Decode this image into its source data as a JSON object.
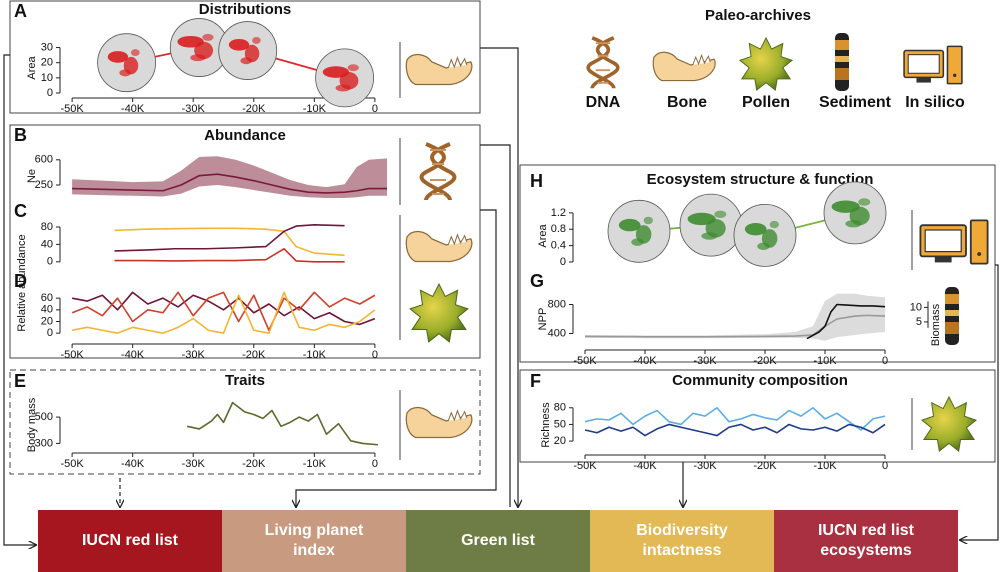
{
  "paleo_archives": {
    "title": "Paleo-archives",
    "items": [
      "DNA",
      "Bone",
      "Pollen",
      "Sediment",
      "In silico"
    ]
  },
  "outcomes": [
    "IUCN red list",
    "Living planet index",
    "Green list",
    "Biodiversity intactness",
    "IUCN red list ecosystems"
  ],
  "chart_data": [
    {
      "type": "line",
      "panel": "A",
      "title": "Distributions",
      "ylabel": "Area",
      "marker": "map",
      "color": "#e3262b",
      "map_color": "#d9d9d9",
      "range_color": "#d81e1e",
      "xlim": [
        -52,
        2
      ],
      "ylim": [
        0,
        33
      ],
      "yticks": [
        0,
        10,
        20,
        30
      ],
      "xticks": [
        {
          "value": -50,
          "label": "-50K"
        },
        {
          "value": -40,
          "label": "-40K"
        },
        {
          "value": -30,
          "label": "-30K"
        },
        {
          "value": -20,
          "label": "-20K"
        },
        {
          "value": -10,
          "label": "-10K"
        },
        0
      ],
      "x": [
        -41,
        -29,
        -21,
        -5
      ],
      "values": [
        20,
        30,
        28,
        10
      ]
    },
    {
      "type": "line",
      "panel": "B",
      "title": "Abundance",
      "ylabel": "Ne",
      "color": "#7a1a3a",
      "band_color": "#b27a88",
      "xlim": [
        -52,
        2
      ],
      "ylim": [
        0,
        750
      ],
      "yticks": [
        250,
        600
      ],
      "x": [
        -50,
        -45,
        -40,
        -35,
        -32,
        -29,
        -26,
        -23,
        -20,
        -17,
        -14,
        -11,
        -8,
        -5,
        -3,
        -1,
        2
      ],
      "values": [
        200,
        190,
        180,
        170,
        250,
        380,
        400,
        360,
        310,
        250,
        190,
        150,
        140,
        150,
        170,
        200,
        200
      ],
      "upper": [
        330,
        310,
        290,
        300,
        450,
        640,
        650,
        600,
        520,
        420,
        320,
        250,
        220,
        260,
        500,
        600,
        620
      ],
      "lower": [
        120,
        110,
        100,
        90,
        130,
        230,
        250,
        220,
        180,
        140,
        100,
        80,
        70,
        70,
        80,
        100,
        100
      ]
    },
    {
      "type": "line",
      "panel": "C",
      "ylabel": "Relative abundance",
      "xlim": [
        -52,
        2
      ],
      "ylim": [
        -5,
        96
      ],
      "yticks": [
        0,
        40,
        80
      ],
      "x": [
        -43,
        -38,
        -33,
        -28,
        -23,
        -18,
        -15,
        -13,
        -10,
        -5
      ],
      "series": [
        {
          "color": "#f2b632",
          "values": [
            72,
            75,
            76,
            77,
            77,
            75,
            70,
            35,
            20,
            15
          ]
        },
        {
          "color": "#6e1538",
          "values": [
            25,
            27,
            30,
            30,
            32,
            35,
            70,
            82,
            85,
            83
          ]
        },
        {
          "color": "#c8322a",
          "values": [
            3,
            3,
            2,
            3,
            3,
            5,
            30,
            2,
            0,
            0
          ]
        }
      ]
    },
    {
      "type": "line",
      "panel": "D",
      "xlim": [
        -52,
        2
      ],
      "ylim": [
        -10,
        74
      ],
      "yticks": [
        0,
        20,
        40,
        60
      ],
      "xticks": [
        {
          "value": -50,
          "label": "-50K"
        },
        {
          "value": -40,
          "label": "-40K"
        },
        {
          "value": -30,
          "label": "-30K"
        },
        {
          "value": -20,
          "label": "-20K"
        },
        {
          "value": -10,
          "label": "-10K"
        },
        0
      ],
      "x": [
        -50,
        -47.5,
        -45,
        -42.5,
        -40,
        -37.5,
        -35,
        -32.5,
        -30,
        -27.5,
        -25,
        -22.5,
        -20,
        -17.5,
        -15,
        -12.5,
        -10,
        -7.5,
        -5,
        -2.5,
        0
      ],
      "series": [
        {
          "color": "#6e1538",
          "values": [
            60,
            55,
            65,
            40,
            70,
            50,
            60,
            45,
            65,
            55,
            40,
            60,
            35,
            50,
            30,
            45,
            25,
            35,
            20,
            15,
            25
          ]
        },
        {
          "color": "#d0402a",
          "values": [
            35,
            45,
            30,
            60,
            20,
            40,
            35,
            70,
            30,
            60,
            70,
            20,
            65,
            5,
            60,
            40,
            70,
            45,
            60,
            50,
            65
          ]
        },
        {
          "color": "#f2b632",
          "values": [
            5,
            10,
            5,
            0,
            10,
            5,
            0,
            10,
            25,
            5,
            0,
            65,
            5,
            0,
            70,
            10,
            5,
            15,
            10,
            20,
            40
          ]
        }
      ]
    },
    {
      "type": "line",
      "panel": "E",
      "title": "Traits",
      "ylabel": "Body mass",
      "color": "#5a6b2e",
      "xlim": [
        -52,
        2
      ],
      "ylim": [
        250,
        630
      ],
      "yticks": [
        300,
        500
      ],
      "xticks": [
        {
          "value": -50,
          "label": "-50K"
        },
        {
          "value": -40,
          "label": "-40K"
        },
        {
          "value": -30,
          "label": "-30K"
        },
        {
          "value": -20,
          "label": "-20K"
        },
        {
          "value": -10,
          "label": "-10K"
        },
        0
      ],
      "x": [
        -31,
        -29,
        -27,
        -26,
        -25,
        -23.5,
        -21.5,
        -20,
        -18.5,
        -17,
        -15.5,
        -14,
        -12.5,
        -11,
        -9.5,
        -8,
        -6,
        -4,
        -2,
        0.5
      ],
      "values": [
        430,
        410,
        470,
        520,
        460,
        610,
        540,
        520,
        490,
        550,
        430,
        460,
        500,
        470,
        520,
        370,
        450,
        320,
        300,
        290
      ]
    },
    {
      "type": "line",
      "panel": "H",
      "title": "Ecosystem structure & function",
      "ylabel": "Area",
      "marker": "map",
      "color": "#7cb342",
      "map_color": "#d9d9d9",
      "range_color": "#3d8b2f",
      "xlim": [
        -52,
        1
      ],
      "ylim": [
        0,
        1.27
      ],
      "yticks": [
        0,
        0.4,
        0.8,
        1.2
      ],
      "x": [
        -41,
        -29,
        -20,
        -5
      ],
      "values": [
        0.75,
        0.9,
        0.65,
        1.2
      ]
    },
    {
      "type": "line",
      "panel": "G",
      "ylabel": "NPP",
      "y2label": "Biomass",
      "xlim": [
        -52,
        1
      ],
      "ylim": [
        200,
        1000
      ],
      "yticks": [
        400,
        800
      ],
      "y2lim": [
        -4,
        16
      ],
      "y2ticks": [
        5,
        10
      ],
      "xticks": [
        {
          "value": -50,
          "label": "-50K"
        },
        {
          "value": -40,
          "label": "-40K"
        },
        {
          "value": -30,
          "label": "-30K"
        },
        {
          "value": -20,
          "label": "-20K"
        },
        {
          "value": -10,
          "label": "-10K"
        },
        0
      ],
      "series": [
        {
          "color": "#999999",
          "band_color": "#d6d6d6",
          "x": [
            -50,
            -40,
            -30,
            -20,
            -15,
            -12,
            -10,
            -8,
            -5,
            -3,
            0
          ],
          "values": [
            360,
            355,
            355,
            360,
            365,
            380,
            500,
            600,
            640,
            650,
            640
          ],
          "upper": [
            380,
            375,
            375,
            390,
            420,
            500,
            850,
            950,
            950,
            920,
            900
          ],
          "lower": [
            340,
            335,
            335,
            340,
            340,
            330,
            300,
            350,
            380,
            400,
            420
          ]
        },
        {
          "color": "#111111",
          "x": [
            -13,
            -11,
            -10,
            -9,
            -8,
            -6,
            -4,
            -2,
            0
          ],
          "values": [
            330,
            420,
            500,
            700,
            800,
            790,
            780,
            780,
            770
          ]
        }
      ]
    },
    {
      "type": "line",
      "panel": "F",
      "title": "Community composition",
      "ylabel": "Richness",
      "xlim": [
        -52,
        1
      ],
      "ylim": [
        4,
        94
      ],
      "yticks": [
        20,
        50,
        80
      ],
      "xticks": [
        {
          "value": -50,
          "label": "-50K"
        },
        {
          "value": -40,
          "label": "-40K"
        },
        {
          "value": -30,
          "label": "-30K"
        },
        {
          "value": -20,
          "label": "-20K"
        },
        {
          "value": -10,
          "label": "-10K"
        },
        0
      ],
      "x": [
        -50,
        -48,
        -46,
        -44,
        -42,
        -40,
        -38,
        -36,
        -34,
        -32,
        -30,
        -28,
        -26,
        -24,
        -22,
        -20,
        -18,
        -16,
        -14,
        -12,
        -10,
        -8,
        -6,
        -4,
        -2,
        0
      ],
      "series": [
        {
          "color": "#5dade2",
          "values": [
            55,
            60,
            58,
            70,
            50,
            65,
            75,
            55,
            50,
            70,
            65,
            80,
            55,
            60,
            68,
            62,
            58,
            75,
            65,
            80,
            60,
            70,
            55,
            40,
            60,
            65
          ]
        },
        {
          "color": "#1f3c88",
          "values": [
            40,
            35,
            45,
            38,
            45,
            30,
            42,
            50,
            45,
            40,
            35,
            30,
            45,
            50,
            40,
            45,
            35,
            50,
            42,
            40,
            45,
            38,
            50,
            45,
            35,
            50
          ]
        }
      ]
    }
  ]
}
